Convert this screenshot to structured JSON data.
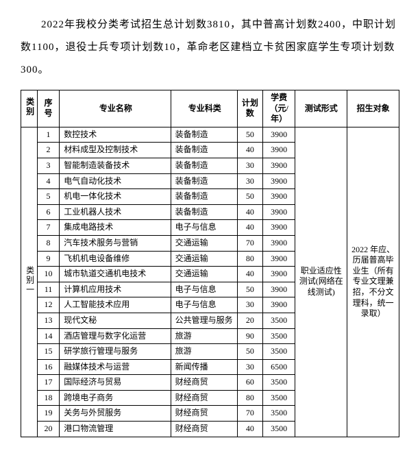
{
  "intro": "2022年我校分类考试招生总计划数3810，其中普高计划数2400，中职计划数1100，退役士兵专项计划数10，革命老区建档立卡贫困家庭学生专项计划数300。",
  "headers": {
    "category": "类别",
    "index": "序号",
    "name": "专业名称",
    "subject": "专业科类",
    "plan": "计划数",
    "fee": "学费（元/年）",
    "test": "测试形式",
    "target": "招生对象"
  },
  "category_label": "类别一",
  "test_form": "职业适应性测试(网络在线测试)",
  "target_desc": "2022 年应、历届普高毕业生（所有专业文理兼招，不分文理科，统一录取）",
  "rows": [
    {
      "idx": "1",
      "name": "数控技术",
      "subject": "装备制造",
      "plan": "50",
      "fee": "3900"
    },
    {
      "idx": "2",
      "name": "材料成型及控制技术",
      "subject": "装备制造",
      "plan": "40",
      "fee": "3900"
    },
    {
      "idx": "3",
      "name": "智能制造装备技术",
      "subject": "装备制造",
      "plan": "30",
      "fee": "3900"
    },
    {
      "idx": "4",
      "name": "电气自动化技术",
      "subject": "装备制造",
      "plan": "30",
      "fee": "3900"
    },
    {
      "idx": "5",
      "name": "机电一体化技术",
      "subject": "装备制造",
      "plan": "50",
      "fee": "3900"
    },
    {
      "idx": "6",
      "name": "工业机器人技术",
      "subject": "装备制造",
      "plan": "40",
      "fee": "3900"
    },
    {
      "idx": "7",
      "name": "集成电路技术",
      "subject": "电子与信息",
      "plan": "40",
      "fee": "3900"
    },
    {
      "idx": "8",
      "name": "汽车技术服务与营销",
      "subject": "交通运输",
      "plan": "70",
      "fee": "3900"
    },
    {
      "idx": "9",
      "name": "飞机机电设备维修",
      "subject": "交通运输",
      "plan": "80",
      "fee": "3900"
    },
    {
      "idx": "10",
      "name": "城市轨道交通机电技术",
      "subject": "交通运输",
      "plan": "40",
      "fee": "3900"
    },
    {
      "idx": "11",
      "name": "计算机应用技术",
      "subject": "电子与信息",
      "plan": "50",
      "fee": "3900"
    },
    {
      "idx": "12",
      "name": "人工智能技术应用",
      "subject": "电子与信息",
      "plan": "30",
      "fee": "3900"
    },
    {
      "idx": "13",
      "name": "现代文秘",
      "subject": "公共管理与服务",
      "plan": "20",
      "fee": "3500"
    },
    {
      "idx": "14",
      "name": "酒店管理与数字化运营",
      "subject": "旅游",
      "plan": "90",
      "fee": "3500"
    },
    {
      "idx": "15",
      "name": "研学旅行管理与服务",
      "subject": "旅游",
      "plan": "50",
      "fee": "3500"
    },
    {
      "idx": "16",
      "name": "融媒体技术与运营",
      "subject": "新闻传播",
      "plan": "30",
      "fee": "6500"
    },
    {
      "idx": "17",
      "name": "国际经济与贸易",
      "subject": "财经商贸",
      "plan": "60",
      "fee": "3500"
    },
    {
      "idx": "18",
      "name": "跨境电子商务",
      "subject": "财经商贸",
      "plan": "80",
      "fee": "3500"
    },
    {
      "idx": "19",
      "name": "关务与外贸服务",
      "subject": "财经商贸",
      "plan": "70",
      "fee": "3500"
    },
    {
      "idx": "20",
      "name": "港口物流管理",
      "subject": "财经商贸",
      "plan": "40",
      "fee": "3500"
    }
  ]
}
